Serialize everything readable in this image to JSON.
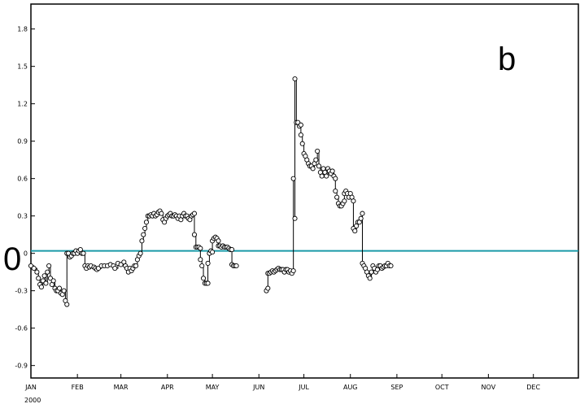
{
  "chart_data": {
    "type": "line",
    "title": "",
    "xlabel": "",
    "ylabel": "",
    "panel_label": "b",
    "zero_label": "0",
    "year_label": "2000",
    "x_range": [
      0,
      365
    ],
    "ylim": [
      -1.0,
      2.0
    ],
    "y_ticks": [
      -0.9,
      -0.6,
      -0.3,
      0,
      0.3,
      0.6,
      0.9,
      1.2,
      1.5,
      1.8
    ],
    "y_tick_labels": [
      "-0.9",
      "-0.6",
      "-0.3",
      "0",
      "0.3",
      "0.6",
      "0.9",
      "1.2",
      "1.5",
      "1.8"
    ],
    "months": [
      {
        "label": "JAN",
        "day": 0
      },
      {
        "label": "FEB",
        "day": 31
      },
      {
        "label": "MAR",
        "day": 60
      },
      {
        "label": "APR",
        "day": 91
      },
      {
        "label": "MAY",
        "day": 121
      },
      {
        "label": "JUN",
        "day": 152
      },
      {
        "label": "JUL",
        "day": 182
      },
      {
        "label": "AUG",
        "day": 213
      },
      {
        "label": "SEP",
        "day": 244
      },
      {
        "label": "OCT",
        "day": 274
      },
      {
        "label": "NOV",
        "day": 305
      },
      {
        "label": "DEC",
        "day": 335
      }
    ],
    "reference_line": {
      "y": 0.02,
      "color": "#1a9aa8"
    },
    "grid": false,
    "series": [
      {
        "segments": [
          [
            [
              0,
              -0.1
            ],
            [
              2,
              -0.12
            ],
            [
              4,
              -0.15
            ],
            [
              5,
              -0.2
            ],
            [
              6,
              -0.25
            ],
            [
              7,
              -0.27
            ],
            [
              8,
              -0.22
            ],
            [
              9,
              -0.18
            ],
            [
              10,
              -0.24
            ],
            [
              11,
              -0.15
            ],
            [
              12,
              -0.1
            ],
            [
              13,
              -0.2
            ],
            [
              14,
              -0.25
            ],
            [
              15,
              -0.22
            ],
            [
              16,
              -0.28
            ],
            [
              17,
              -0.3
            ],
            [
              18,
              -0.3
            ],
            [
              19,
              -0.28
            ],
            [
              20,
              -0.32
            ],
            [
              21,
              -0.33
            ],
            [
              22,
              -0.3
            ],
            [
              23,
              -0.38
            ],
            [
              24,
              -0.41
            ],
            [
              24,
              0.0
            ],
            [
              25,
              0.0
            ],
            [
              26,
              -0.03
            ],
            [
              27,
              -0.02
            ],
            [
              28,
              0.0
            ],
            [
              29,
              0.0
            ],
            [
              30,
              0.02
            ],
            [
              31,
              0.0
            ],
            [
              32,
              0.02
            ],
            [
              33,
              0.03
            ],
            [
              34,
              0.0
            ],
            [
              35,
              0.0
            ],
            [
              36,
              -0.1
            ],
            [
              37,
              -0.12
            ],
            [
              38,
              -0.1
            ],
            [
              39,
              -0.11
            ],
            [
              40,
              -0.1
            ],
            [
              42,
              -0.11
            ],
            [
              43,
              -0.12
            ],
            [
              44,
              -0.13
            ],
            [
              45,
              -0.12
            ],
            [
              47,
              -0.1
            ],
            [
              49,
              -0.1
            ],
            [
              51,
              -0.1
            ],
            [
              53,
              -0.09
            ],
            [
              55,
              -0.1
            ],
            [
              56,
              -0.12
            ],
            [
              58,
              -0.08
            ],
            [
              60,
              -0.09
            ],
            [
              62,
              -0.07
            ],
            [
              63,
              -0.1
            ],
            [
              64,
              -0.12
            ],
            [
              65,
              -0.15
            ],
            [
              66,
              -0.12
            ],
            [
              67,
              -0.14
            ],
            [
              68,
              -0.12
            ],
            [
              69,
              -0.1
            ],
            [
              70,
              -0.1
            ],
            [
              71,
              -0.05
            ],
            [
              72,
              -0.02
            ],
            [
              73,
              0.0
            ],
            [
              74,
              0.1
            ],
            [
              75,
              0.15
            ],
            [
              76,
              0.2
            ],
            [
              77,
              0.25
            ],
            [
              78,
              0.3
            ],
            [
              79,
              0.3
            ],
            [
              80,
              0.31
            ],
            [
              81,
              0.3
            ],
            [
              82,
              0.32
            ],
            [
              83,
              0.3
            ],
            [
              84,
              0.31
            ],
            [
              85,
              0.33
            ],
            [
              86,
              0.34
            ],
            [
              87,
              0.32
            ],
            [
              88,
              0.27
            ],
            [
              89,
              0.25
            ],
            [
              90,
              0.28
            ],
            [
              91,
              0.3
            ],
            [
              92,
              0.31
            ],
            [
              93,
              0.32
            ],
            [
              94,
              0.3
            ],
            [
              95,
              0.3
            ],
            [
              96,
              0.31
            ],
            [
              97,
              0.3
            ],
            [
              98,
              0.28
            ],
            [
              99,
              0.3
            ],
            [
              100,
              0.27
            ],
            [
              101,
              0.3
            ],
            [
              102,
              0.32
            ],
            [
              103,
              0.3
            ],
            [
              104,
              0.3
            ],
            [
              105,
              0.28
            ],
            [
              106,
              0.27
            ],
            [
              107,
              0.3
            ],
            [
              108,
              0.31
            ],
            [
              109,
              0.32
            ],
            [
              109,
              0.15
            ],
            [
              110,
              0.05
            ],
            [
              111,
              0.05
            ],
            [
              112,
              0.05
            ],
            [
              113,
              0.04
            ],
            [
              113,
              -0.05
            ],
            [
              114,
              -0.1
            ],
            [
              115,
              -0.2
            ],
            [
              116,
              -0.24
            ],
            [
              117,
              -0.24
            ],
            [
              118,
              -0.24
            ],
            [
              118,
              -0.08
            ],
            [
              119,
              0.0
            ],
            [
              120,
              0.02
            ],
            [
              121,
              0.01
            ],
            [
              121,
              0.1
            ],
            [
              122,
              0.12
            ],
            [
              123,
              0.13
            ],
            [
              124,
              0.12
            ],
            [
              125,
              0.1
            ],
            [
              125,
              0.06
            ],
            [
              126,
              0.06
            ],
            [
              127,
              0.05
            ],
            [
              128,
              0.06
            ],
            [
              129,
              0.05
            ],
            [
              130,
              0.05
            ],
            [
              131,
              0.05
            ],
            [
              132,
              0.04
            ],
            [
              133,
              0.03
            ],
            [
              134,
              0.03
            ],
            [
              134,
              -0.09
            ],
            [
              135,
              -0.1
            ],
            [
              136,
              -0.1
            ],
            [
              137,
              -0.1
            ]
          ],
          [
            [
              157,
              -0.3
            ],
            [
              158,
              -0.28
            ],
            [
              158,
              -0.16
            ],
            [
              159,
              -0.16
            ],
            [
              160,
              -0.15
            ],
            [
              161,
              -0.14
            ],
            [
              162,
              -0.15
            ],
            [
              163,
              -0.14
            ],
            [
              164,
              -0.13
            ],
            [
              165,
              -0.12
            ],
            [
              166,
              -0.13
            ],
            [
              167,
              -0.13
            ],
            [
              168,
              -0.13
            ],
            [
              169,
              -0.15
            ],
            [
              170,
              -0.13
            ],
            [
              171,
              -0.13
            ],
            [
              172,
              -0.15
            ],
            [
              173,
              -0.14
            ],
            [
              174,
              -0.16
            ],
            [
              175,
              -0.14
            ],
            [
              175,
              0.6
            ],
            [
              176,
              0.28
            ],
            [
              176,
              1.4
            ],
            [
              177,
              1.05
            ],
            [
              178,
              1.05
            ],
            [
              179,
              1.02
            ],
            [
              180,
              1.03
            ],
            [
              180,
              0.95
            ],
            [
              181,
              0.88
            ],
            [
              182,
              0.8
            ],
            [
              183,
              0.78
            ],
            [
              184,
              0.75
            ],
            [
              185,
              0.72
            ],
            [
              186,
              0.7
            ],
            [
              187,
              0.7
            ],
            [
              188,
              0.68
            ],
            [
              189,
              0.72
            ],
            [
              190,
              0.75
            ],
            [
              191,
              0.82
            ],
            [
              192,
              0.7
            ],
            [
              193,
              0.65
            ],
            [
              194,
              0.62
            ],
            [
              195,
              0.68
            ],
            [
              196,
              0.65
            ],
            [
              197,
              0.62
            ],
            [
              198,
              0.68
            ],
            [
              199,
              0.66
            ],
            [
              200,
              0.64
            ],
            [
              201,
              0.66
            ],
            [
              202,
              0.62
            ],
            [
              203,
              0.6
            ],
            [
              203,
              0.5
            ],
            [
              204,
              0.45
            ],
            [
              205,
              0.4
            ],
            [
              206,
              0.38
            ],
            [
              207,
              0.38
            ],
            [
              208,
              0.4
            ],
            [
              209,
              0.42
            ],
            [
              209,
              0.48
            ],
            [
              210,
              0.5
            ],
            [
              211,
              0.48
            ],
            [
              212,
              0.45
            ],
            [
              213,
              0.48
            ],
            [
              214,
              0.45
            ],
            [
              215,
              0.42
            ],
            [
              215,
              0.2
            ],
            [
              216,
              0.18
            ],
            [
              217,
              0.22
            ],
            [
              218,
              0.25
            ],
            [
              219,
              0.25
            ],
            [
              220,
              0.28
            ],
            [
              221,
              0.32
            ],
            [
              221,
              -0.08
            ],
            [
              222,
              -0.1
            ],
            [
              223,
              -0.12
            ],
            [
              224,
              -0.15
            ],
            [
              225,
              -0.18
            ],
            [
              226,
              -0.2
            ],
            [
              227,
              -0.15
            ],
            [
              228,
              -0.1
            ],
            [
              229,
              -0.12
            ],
            [
              230,
              -0.15
            ],
            [
              231,
              -0.13
            ],
            [
              232,
              -0.1
            ],
            [
              233,
              -0.1
            ],
            [
              234,
              -0.12
            ],
            [
              235,
              -0.11
            ],
            [
              236,
              -0.1
            ],
            [
              237,
              -0.1
            ],
            [
              238,
              -0.08
            ],
            [
              239,
              -0.1
            ],
            [
              240,
              -0.1
            ]
          ]
        ]
      }
    ]
  }
}
